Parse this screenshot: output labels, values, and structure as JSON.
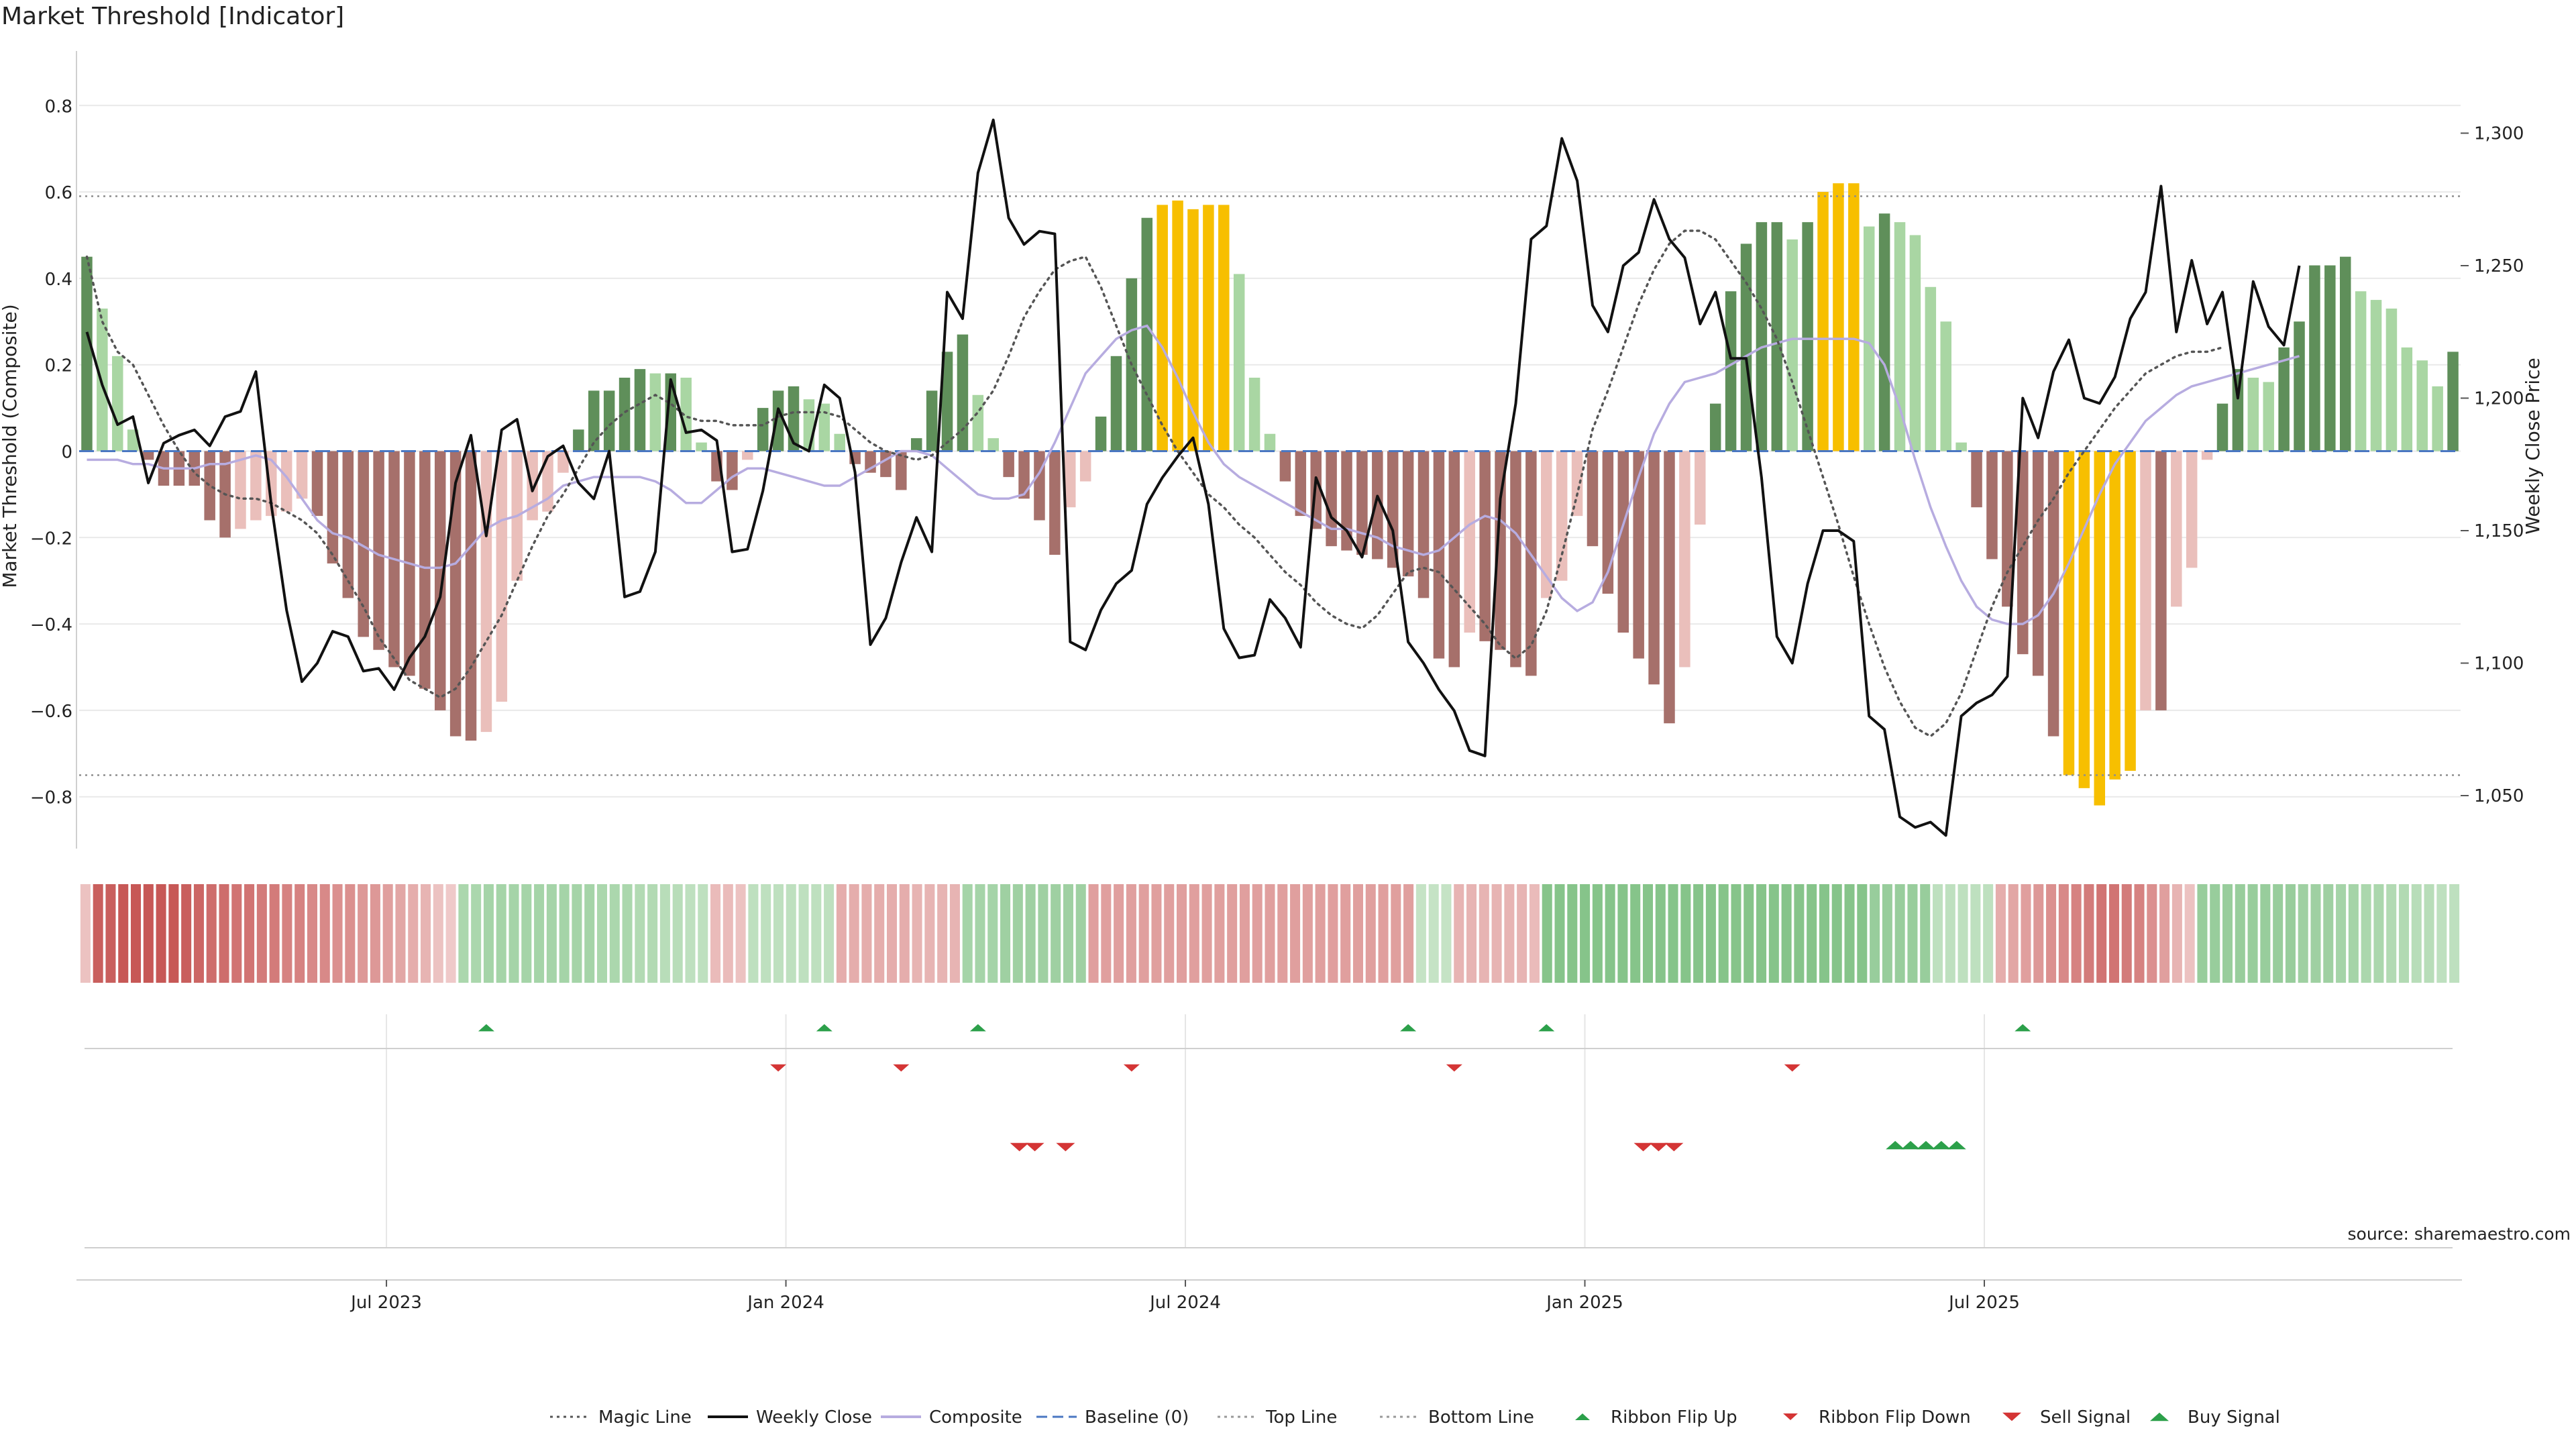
{
  "title": "Market Threshold [Indicator]",
  "source_note": "source: sharemaestro.com",
  "chart_data": {
    "type": "bar",
    "title": "Market Threshold [Indicator]",
    "ylabel": "Market Threshold (Composite)",
    "y2label": "Weekly Close Price",
    "ylim": [
      -0.92,
      0.92
    ],
    "y2lim": [
      1030,
      1330
    ],
    "yticks": [
      -0.8,
      -0.6,
      -0.4,
      -0.2,
      0,
      0.2,
      0.4,
      0.6,
      0.8
    ],
    "ytick_labels": [
      "−0.8",
      "−0.6",
      "−0.4",
      "−0.2",
      "0",
      "0.2",
      "0.4",
      "0.6",
      "0.8"
    ],
    "y2ticks": [
      1050,
      1100,
      1150,
      1200,
      1250,
      1300
    ],
    "y2tick_labels": [
      "1,050",
      "1,100",
      "1,150",
      "1,200",
      "1,250",
      "1,300"
    ],
    "top_line": 0.59,
    "bottom_line": -0.75,
    "baseline": 0,
    "x_start_week": 0,
    "x_end_week": 143,
    "xticks": [
      {
        "week": 19.5,
        "label": "Jul 2023"
      },
      {
        "week": 45.5,
        "label": "Jan 2024"
      },
      {
        "week": 71.5,
        "label": "Jul 2024"
      },
      {
        "week": 97.5,
        "label": "Jan 2025"
      },
      {
        "week": 123.5,
        "label": "Jul 2025"
      }
    ],
    "composite_bars": [
      0.45,
      0.33,
      0.22,
      0.05,
      -0.02,
      -0.08,
      -0.08,
      -0.08,
      -0.16,
      -0.2,
      -0.18,
      -0.16,
      -0.15,
      -0.14,
      -0.11,
      -0.15,
      -0.26,
      -0.34,
      -0.43,
      -0.46,
      -0.5,
      -0.52,
      -0.55,
      -0.6,
      -0.66,
      -0.67,
      -0.65,
      -0.58,
      -0.3,
      -0.16,
      -0.14,
      -0.05,
      0.05,
      0.14,
      0.14,
      0.17,
      0.19,
      0.18,
      0.18,
      0.17,
      0.02,
      -0.07,
      -0.09,
      -0.02,
      0.1,
      0.14,
      0.15,
      0.12,
      0.11,
      0.04,
      -0.03,
      -0.05,
      -0.06,
      -0.09,
      0.03,
      0.14,
      0.23,
      0.27,
      0.13,
      0.03,
      -0.06,
      -0.11,
      -0.16,
      -0.24,
      -0.13,
      -0.07,
      0.08,
      0.22,
      0.4,
      0.54,
      0.57,
      0.58,
      0.56,
      0.57,
      0.57,
      0.41,
      0.17,
      0.04,
      -0.07,
      -0.15,
      -0.18,
      -0.22,
      -0.23,
      -0.24,
      -0.25,
      -0.27,
      -0.29,
      -0.34,
      -0.48,
      -0.5,
      -0.42,
      -0.44,
      -0.46,
      -0.5,
      -0.52,
      -0.34,
      -0.3,
      -0.15,
      -0.22,
      -0.33,
      -0.42,
      -0.48,
      -0.54,
      -0.63,
      -0.5,
      -0.17,
      0.11,
      0.37,
      0.48,
      0.53,
      0.53,
      0.49,
      0.53,
      0.6,
      0.62,
      0.62,
      0.52,
      0.55,
      0.53,
      0.5,
      0.38,
      0.3,
      0.02,
      -0.13,
      -0.25,
      -0.36,
      -0.47,
      -0.52,
      -0.66,
      -0.75,
      -0.78,
      -0.82,
      -0.76,
      -0.74,
      -0.6,
      -0.6,
      -0.36,
      -0.27,
      -0.02,
      0.11,
      0.19,
      0.17,
      0.16,
      0.24,
      0.3,
      0.43,
      0.43,
      0.45,
      0.37,
      0.35,
      0.33,
      0.24,
      0.21,
      0.15,
      0.23
    ],
    "weekly_close": [
      1225,
      1205,
      1190,
      1193,
      1168,
      1183,
      1186,
      1188,
      1182,
      1193,
      1195,
      1210,
      1160,
      1120,
      1093,
      1100,
      1112,
      1110,
      1097,
      1098,
      1090,
      1102,
      1110,
      1125,
      1168,
      1186,
      1148,
      1188,
      1192,
      1165,
      1178,
      1182,
      1168,
      1162,
      1180,
      1125,
      1127,
      1142,
      1207,
      1187,
      1188,
      1184,
      1142,
      1143,
      1165,
      1196,
      1183,
      1180,
      1205,
      1200,
      1172,
      1107,
      1117,
      1138,
      1155,
      1142,
      1240,
      1230,
      1285,
      1305,
      1268,
      1258,
      1263,
      1262,
      1108,
      1105,
      1120,
      1130,
      1135,
      1160,
      1170,
      1178,
      1185,
      1160,
      1113,
      1102,
      1103,
      1124,
      1117,
      1106,
      1170,
      1155,
      1150,
      1140,
      1163,
      1150,
      1108,
      1100,
      1090,
      1082,
      1067,
      1065,
      1162,
      1198,
      1260,
      1265,
      1298,
      1282,
      1235,
      1225,
      1250,
      1255,
      1275,
      1260,
      1253,
      1228,
      1240,
      1215,
      1215,
      1170,
      1110,
      1100,
      1130,
      1150,
      1150,
      1146,
      1080,
      1075,
      1042,
      1038,
      1040,
      1035,
      1080,
      1085,
      1088,
      1095,
      1200,
      1185,
      1210,
      1222,
      1200,
      1198,
      1208,
      1230,
      1240,
      1280,
      1225,
      1252,
      1228,
      1240,
      1200,
      1244,
      1227,
      1220,
      1250
    ],
    "magic_line": [
      0.45,
      0.3,
      0.23,
      0.2,
      0.13,
      0.06,
      0.0,
      -0.05,
      -0.08,
      -0.1,
      -0.11,
      -0.11,
      -0.12,
      -0.14,
      -0.16,
      -0.19,
      -0.24,
      -0.3,
      -0.36,
      -0.43,
      -0.48,
      -0.53,
      -0.55,
      -0.57,
      -0.55,
      -0.5,
      -0.44,
      -0.38,
      -0.3,
      -0.22,
      -0.15,
      -0.1,
      -0.04,
      0.02,
      0.06,
      0.09,
      0.11,
      0.13,
      0.11,
      0.08,
      0.07,
      0.07,
      0.06,
      0.06,
      0.06,
      0.08,
      0.09,
      0.09,
      0.09,
      0.08,
      0.05,
      0.02,
      0.0,
      -0.01,
      -0.02,
      -0.01,
      0.02,
      0.05,
      0.09,
      0.14,
      0.22,
      0.31,
      0.37,
      0.42,
      0.44,
      0.45,
      0.38,
      0.29,
      0.2,
      0.13,
      0.06,
      0.0,
      -0.05,
      -0.1,
      -0.13,
      -0.17,
      -0.2,
      -0.24,
      -0.28,
      -0.31,
      -0.35,
      -0.38,
      -0.4,
      -0.41,
      -0.38,
      -0.33,
      -0.28,
      -0.27,
      -0.28,
      -0.32,
      -0.36,
      -0.4,
      -0.45,
      -0.48,
      -0.45,
      -0.37,
      -0.24,
      -0.1,
      0.05,
      0.14,
      0.24,
      0.34,
      0.42,
      0.48,
      0.51,
      0.51,
      0.49,
      0.44,
      0.39,
      0.33,
      0.26,
      0.16,
      0.05,
      -0.06,
      -0.17,
      -0.29,
      -0.4,
      -0.5,
      -0.58,
      -0.64,
      -0.66,
      -0.63,
      -0.56,
      -0.46,
      -0.36,
      -0.28,
      -0.22,
      -0.16,
      -0.11,
      -0.05,
      0.0,
      0.05,
      0.1,
      0.14,
      0.18,
      0.2,
      0.22,
      0.23,
      0.23,
      0.24
    ],
    "composite_line": [
      -0.02,
      -0.02,
      -0.02,
      -0.03,
      -0.03,
      -0.04,
      -0.04,
      -0.04,
      -0.03,
      -0.03,
      -0.02,
      -0.01,
      -0.02,
      -0.06,
      -0.11,
      -0.16,
      -0.19,
      -0.2,
      -0.22,
      -0.24,
      -0.25,
      -0.26,
      -0.27,
      -0.27,
      -0.26,
      -0.22,
      -0.18,
      -0.16,
      -0.15,
      -0.13,
      -0.11,
      -0.08,
      -0.07,
      -0.06,
      -0.06,
      -0.06,
      -0.06,
      -0.07,
      -0.09,
      -0.12,
      -0.12,
      -0.09,
      -0.06,
      -0.04,
      -0.04,
      -0.05,
      -0.06,
      -0.07,
      -0.08,
      -0.08,
      -0.06,
      -0.04,
      -0.02,
      0.0,
      0.0,
      -0.01,
      -0.04,
      -0.07,
      -0.1,
      -0.11,
      -0.11,
      -0.1,
      -0.05,
      0.02,
      0.1,
      0.18,
      0.22,
      0.26,
      0.28,
      0.29,
      0.24,
      0.17,
      0.09,
      0.02,
      -0.03,
      -0.06,
      -0.08,
      -0.1,
      -0.12,
      -0.14,
      -0.16,
      -0.18,
      -0.18,
      -0.19,
      -0.2,
      -0.22,
      -0.23,
      -0.24,
      -0.23,
      -0.2,
      -0.17,
      -0.15,
      -0.16,
      -0.19,
      -0.24,
      -0.29,
      -0.34,
      -0.37,
      -0.35,
      -0.28,
      -0.17,
      -0.06,
      0.04,
      0.11,
      0.16,
      0.17,
      0.18,
      0.2,
      0.22,
      0.24,
      0.25,
      0.26,
      0.26,
      0.26,
      0.26,
      0.26,
      0.25,
      0.2,
      0.1,
      -0.02,
      -0.13,
      -0.22,
      -0.3,
      -0.36,
      -0.39,
      -0.4,
      -0.4,
      -0.38,
      -0.33,
      -0.26,
      -0.18,
      -0.1,
      -0.03,
      0.02,
      0.07,
      0.1,
      0.13,
      0.15,
      0.16,
      0.17,
      0.18,
      0.19,
      0.2,
      0.21,
      0.22
    ],
    "ribbon_strength": [
      -0.2,
      -0.9,
      -0.9,
      -0.95,
      -0.95,
      -0.95,
      -0.95,
      -0.95,
      -0.9,
      -0.85,
      -0.8,
      -0.8,
      -0.75,
      -0.75,
      -0.7,
      -0.7,
      -0.65,
      -0.65,
      -0.6,
      -0.6,
      -0.55,
      -0.55,
      -0.5,
      -0.5,
      -0.45,
      -0.4,
      -0.35,
      -0.3,
      -0.2,
      -0.15,
      0.45,
      0.45,
      0.5,
      0.5,
      0.5,
      0.5,
      0.5,
      0.5,
      0.5,
      0.5,
      0.5,
      0.45,
      0.45,
      0.45,
      0.4,
      0.4,
      0.35,
      0.35,
      0.3,
      0.3,
      -0.25,
      -0.25,
      -0.2,
      0.3,
      0.3,
      0.3,
      0.3,
      0.3,
      0.3,
      0.3,
      -0.35,
      -0.35,
      -0.35,
      -0.35,
      -0.35,
      -0.35,
      -0.3,
      -0.3,
      -0.3,
      -0.3,
      0.5,
      0.5,
      0.5,
      0.55,
      0.55,
      0.55,
      0.55,
      0.55,
      0.55,
      0.55,
      -0.45,
      -0.45,
      -0.45,
      -0.45,
      -0.45,
      -0.45,
      -0.45,
      -0.45,
      -0.45,
      -0.45,
      -0.45,
      -0.45,
      -0.45,
      -0.45,
      -0.45,
      -0.45,
      -0.45,
      -0.45,
      -0.45,
      -0.45,
      -0.45,
      -0.45,
      -0.45,
      -0.45,
      -0.45,
      -0.45,
      0.25,
      0.25,
      0.25,
      -0.3,
      -0.3,
      -0.3,
      -0.3,
      -0.3,
      -0.3,
      -0.25,
      0.75,
      0.75,
      0.75,
      0.75,
      0.75,
      0.75,
      0.75,
      0.75,
      0.75,
      0.75,
      0.75,
      0.75,
      0.75,
      0.75,
      0.75,
      0.75,
      0.75,
      0.75,
      0.75,
      0.75,
      0.75,
      0.75,
      0.75,
      0.75,
      0.75,
      0.75,
      0.6,
      0.6,
      0.6,
      0.6,
      0.6,
      0.3,
      0.3,
      0.3,
      0.3,
      0.3,
      -0.35,
      -0.4,
      -0.45,
      -0.5,
      -0.55,
      -0.6,
      -0.65,
      -0.7,
      -0.75,
      -0.75,
      -0.7,
      -0.65,
      -0.55,
      -0.45,
      -0.3,
      -0.2,
      0.6,
      0.6,
      0.6,
      0.6,
      0.6,
      0.6,
      0.6,
      0.6,
      0.55,
      0.55,
      0.55,
      0.5,
      0.5,
      0.45,
      0.45,
      0.4,
      0.4,
      0.35,
      0.35,
      0.3,
      0.3
    ],
    "ribbon_flip_up_weeks": [
      26,
      48,
      58,
      86,
      95,
      126
    ],
    "ribbon_flip_down_weeks": [
      45,
      53,
      68,
      89,
      111
    ],
    "sell_signal_weeks": [
      60.7,
      61.7,
      63.7,
      101.3,
      102.3,
      103.3
    ],
    "buy_signal_weeks": [
      117.7,
      118.7,
      119.7,
      120.7,
      121.7
    ],
    "legend": [
      {
        "label": "Magic Line",
        "kind": "dotted",
        "color": "#555555"
      },
      {
        "label": "Weekly Close",
        "kind": "solid",
        "color": "#111111"
      },
      {
        "label": "Composite",
        "kind": "solid",
        "color": "#b7ace0"
      },
      {
        "label": "Baseline (0)",
        "kind": "dashed",
        "color": "#4a77c2"
      },
      {
        "label": "Top Line",
        "kind": "dotted",
        "color": "#999999"
      },
      {
        "label": "Bottom Line",
        "kind": "dotted",
        "color": "#999999"
      },
      {
        "label": "Ribbon Flip Up",
        "kind": "tri-up",
        "color": "#2ca04a"
      },
      {
        "label": "Ribbon Flip Down",
        "kind": "tri-down",
        "color": "#d43535"
      },
      {
        "label": "Sell Signal",
        "kind": "tri-down-big",
        "color": "#d43535"
      },
      {
        "label": "Buy Signal",
        "kind": "tri-up-big",
        "color": "#2ca04a"
      }
    ],
    "colors": {
      "bull_strong": "#5f8f5a",
      "bull_light": "#a9d6a3",
      "bear_strong": "#a6706b",
      "bear_light": "#eabfbb",
      "extreme": "#f7bf00",
      "close_line": "#111111",
      "magic_line": "#555555",
      "composite_line": "#b7ace0",
      "baseline": "#4a77c2",
      "signal_up": "#2ca04a",
      "signal_down": "#d43535"
    }
  }
}
